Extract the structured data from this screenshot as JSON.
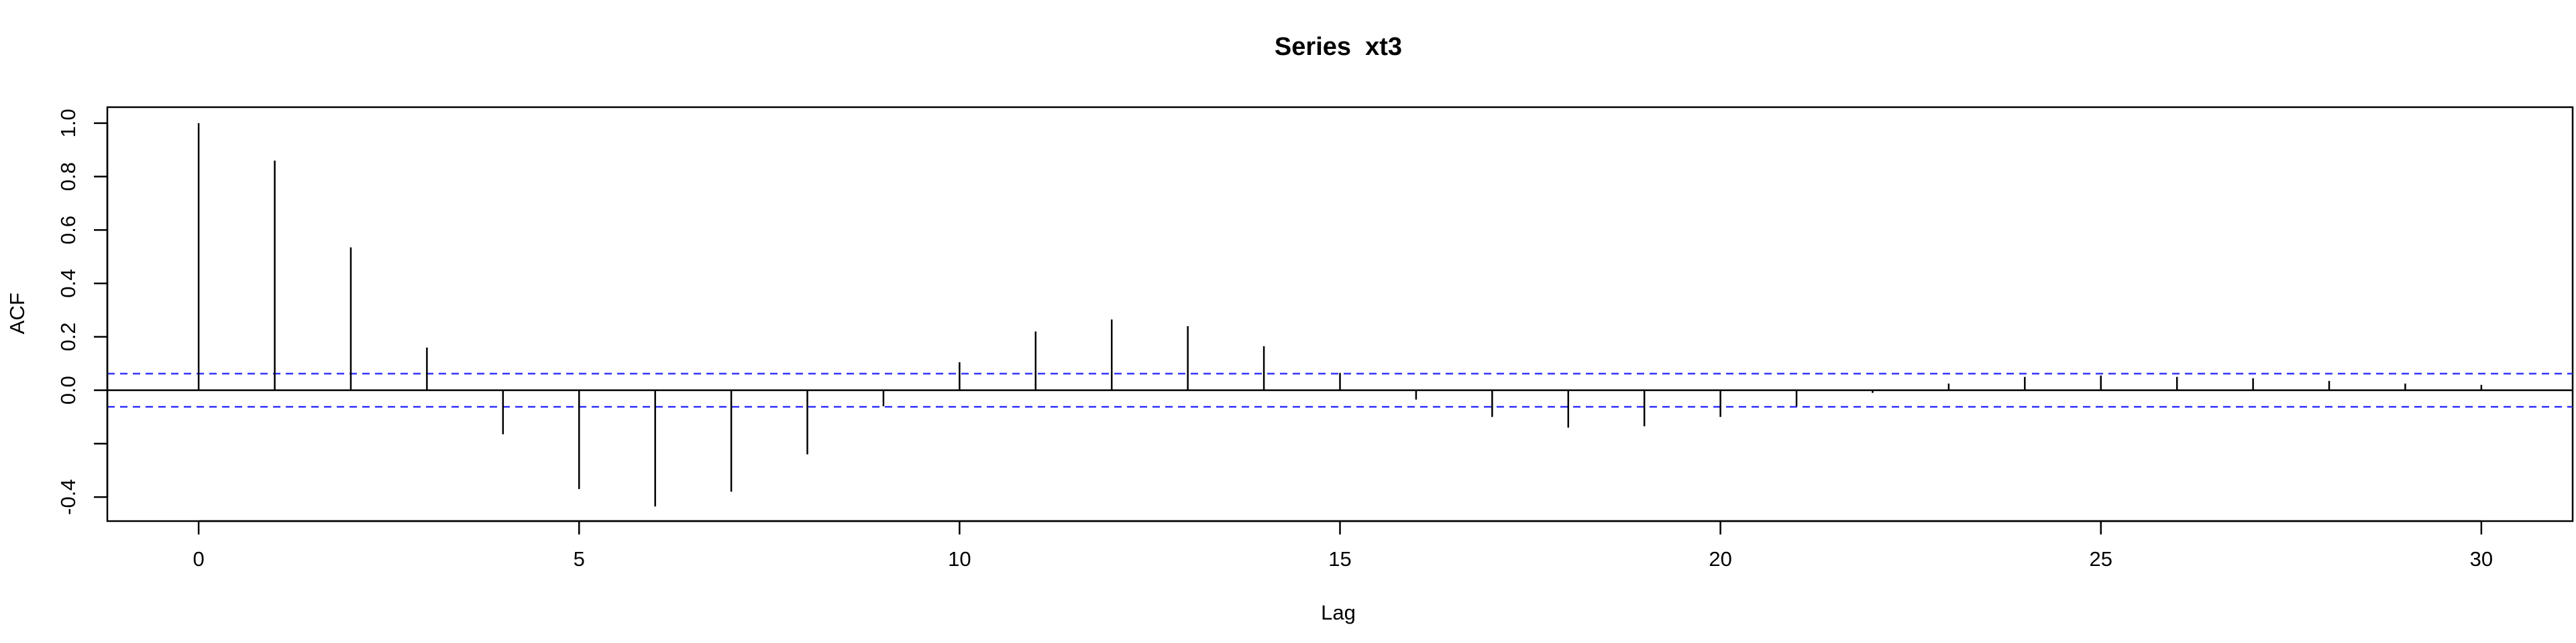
{
  "chart_data": {
    "type": "bar",
    "title": "Series  xt3",
    "xlabel": "Lag",
    "ylabel": "ACF",
    "xlim": [
      -1.2,
      31.2
    ],
    "ylim": [
      -0.49,
      1.06
    ],
    "x_ticks": [
      "0",
      "5",
      "10",
      "15",
      "20",
      "25",
      "30"
    ],
    "x_tick_values": [
      0,
      5,
      10,
      15,
      20,
      25,
      30
    ],
    "y_ticks": [
      "-0.4",
      "",
      "0.0",
      "0.2",
      "0.4",
      "0.6",
      "0.8",
      "1.0"
    ],
    "y_tick_values": [
      -0.4,
      -0.2,
      0.0,
      0.2,
      0.4,
      0.6,
      0.8,
      1.0
    ],
    "lags": [
      0,
      1,
      2,
      3,
      4,
      5,
      6,
      7,
      8,
      9,
      10,
      11,
      12,
      13,
      14,
      15,
      16,
      17,
      18,
      19,
      20,
      21,
      22,
      23,
      24,
      25,
      26,
      27,
      28,
      29,
      30
    ],
    "values": [
      1.0,
      0.86,
      0.535,
      0.16,
      -0.165,
      -0.37,
      -0.435,
      -0.38,
      -0.24,
      -0.06,
      0.105,
      0.22,
      0.265,
      0.24,
      0.165,
      0.065,
      -0.035,
      -0.1,
      -0.14,
      -0.135,
      -0.1,
      -0.06,
      -0.01,
      0.025,
      0.05,
      0.055,
      0.05,
      0.045,
      0.035,
      0.025,
      0.02
    ],
    "confidence_bound": 0.062,
    "colors": {
      "bars": "#000000",
      "confidence": "#3333ff",
      "frame": "#000000"
    },
    "grid": false,
    "legend": "none"
  }
}
